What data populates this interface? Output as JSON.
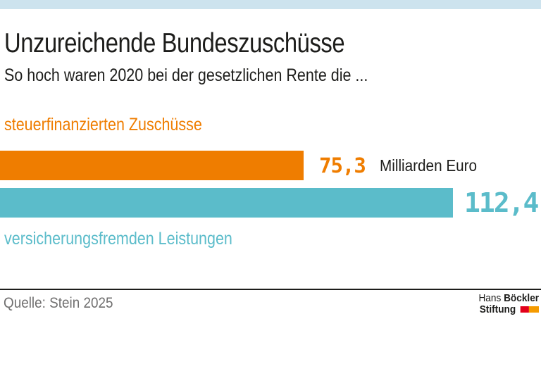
{
  "header": {
    "title": "Unzureichende Bundeszuschüsse",
    "subtitle": "So hoch waren 2020 bei der gesetzlichen Rente die ..."
  },
  "chart_data": {
    "type": "bar",
    "orientation": "horizontal",
    "title": "Unzureichende Bundeszuschüsse",
    "subtitle": "So hoch waren 2020 bei der gesetzlichen Rente die ...",
    "categories": [
      "steuerfinanzierten Zuschüsse",
      "versicherungsfremden Leistungen"
    ],
    "values": [
      75.3,
      112.4
    ],
    "value_labels": [
      "75,3",
      "112,4"
    ],
    "unit": "Milliarden Euro",
    "colors": [
      "#ef7d00",
      "#5bbcca"
    ],
    "xlim": [
      0,
      120
    ],
    "grid": false,
    "legend": false
  },
  "footer": {
    "source": "Quelle: Stein 2025",
    "logo": {
      "name_regular": "Hans",
      "name_bold": "Böckler",
      "line2_bold": "Stiftung"
    }
  },
  "colors": {
    "top_accent": "#cde3ee",
    "orange": "#ef7d00",
    "teal": "#5bbcca",
    "text": "#1d1d1b",
    "source_gray": "#706f6f",
    "logo_red": "#e2001a",
    "logo_orange": "#f59b00"
  }
}
